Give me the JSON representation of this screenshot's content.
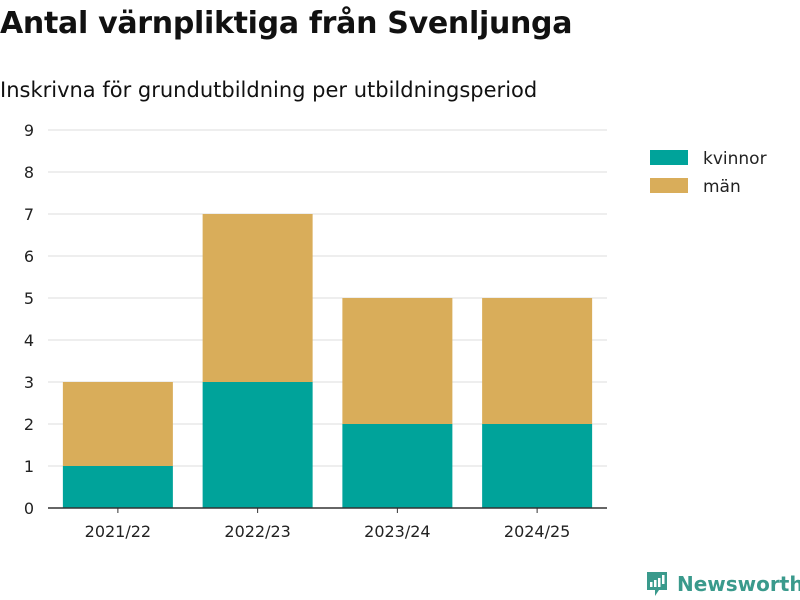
{
  "chart_data": {
    "type": "bar",
    "stacked": true,
    "title": "Antal värnpliktiga från Svenljunga",
    "subtitle": "Inskrivna för grundutbildning per utbildningsperiod",
    "categories": [
      "2021/22",
      "2022/23",
      "2023/24",
      "2024/25"
    ],
    "series": [
      {
        "name": "kvinnor",
        "color": "#00a39a",
        "values": [
          1,
          3,
          2,
          2
        ]
      },
      {
        "name": "män",
        "color": "#d9ad5a",
        "values": [
          2,
          4,
          3,
          3
        ]
      }
    ],
    "yticks": [
      "0",
      "1",
      "2",
      "3",
      "4",
      "5",
      "6",
      "7",
      "8",
      "9"
    ],
    "ylim": [
      0,
      9
    ],
    "grid": true,
    "legend": "top-right"
  },
  "branding": {
    "name": "Newsworthy"
  }
}
